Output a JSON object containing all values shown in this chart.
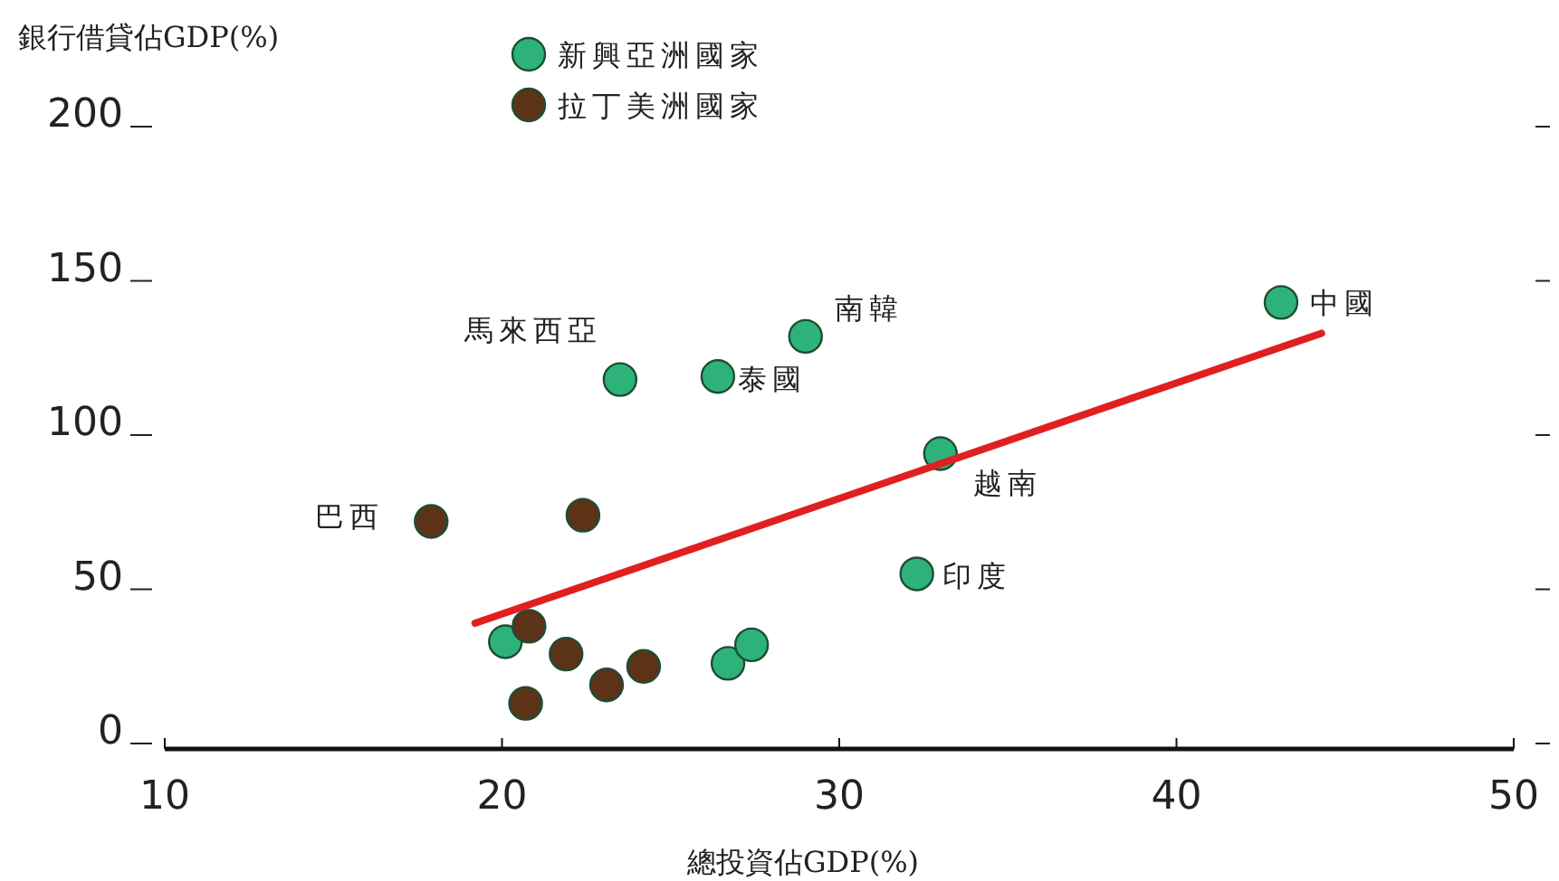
{
  "chart_data": {
    "type": "scatter",
    "xlabel": "總投資佔GDP(%)",
    "ylabel": "銀行借貸佔GDP(%)",
    "xlim": [
      10,
      50
    ],
    "xticks": [
      10,
      20,
      30,
      40,
      50
    ],
    "ylim": [
      0,
      200
    ],
    "yticks": [
      0,
      50,
      100,
      150,
      200
    ],
    "legend": "top",
    "grid": false,
    "series": [
      {
        "name": "新興亞洲國家",
        "color": "#2db37a",
        "marker": "circle",
        "x": [
          43.1,
          29.0,
          23.5,
          26.4,
          33.0,
          32.3,
          20.1,
          26.7,
          27.4
        ],
        "values": [
          143,
          132,
          118,
          119,
          94,
          55,
          33,
          26,
          32
        ]
      },
      {
        "name": "拉丁美洲國家",
        "color": "#5c3317",
        "marker": "circle",
        "x": [
          17.9,
          22.4,
          20.8,
          21.9,
          23.1,
          24.2,
          20.7
        ],
        "values": [
          72,
          74,
          38,
          29,
          19,
          25,
          13
        ]
      },
      {
        "type": "line",
        "marker": "none",
        "color": "#e02020",
        "x": [
          19.2,
          44.3
        ],
        "values": [
          39,
          133
        ]
      }
    ],
    "annotations": [
      {
        "text": "中國",
        "x": 43.1,
        "y": 143
      },
      {
        "text": "南韓",
        "x": 29.0,
        "y": 132
      },
      {
        "text": "馬來西亞",
        "x": 23.5,
        "y": 118
      },
      {
        "text": "泰國",
        "x": 26.4,
        "y": 119
      },
      {
        "text": "越南",
        "x": 33.0,
        "y": 94
      },
      {
        "text": "印度",
        "x": 32.3,
        "y": 55
      },
      {
        "text": "巴西",
        "x": 17.9,
        "y": 72
      }
    ]
  }
}
